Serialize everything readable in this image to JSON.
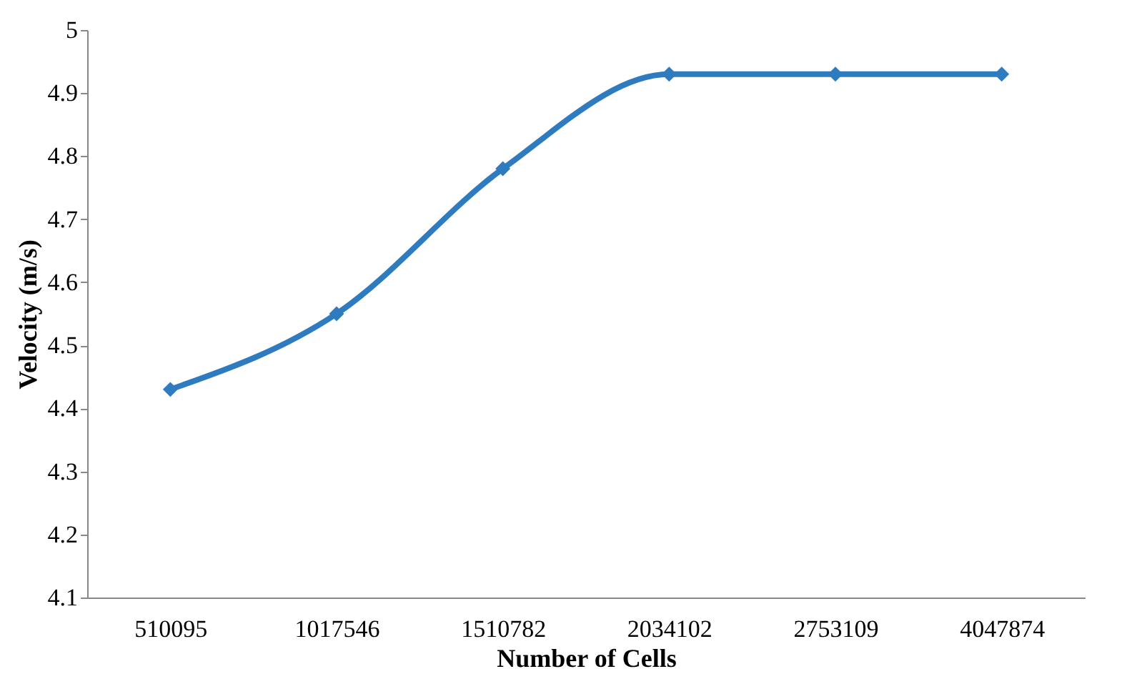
{
  "chart_data": {
    "type": "line",
    "xlabel": "Number of Cells",
    "ylabel": "Velocity (m/s)",
    "categories": [
      "510095",
      "1017546",
      "1510782",
      "2034102",
      "2753109",
      "4047874"
    ],
    "series": [
      {
        "color": "#2e7bc0",
        "values": [
          4.43,
          4.55,
          4.78,
          4.93,
          4.93,
          4.93
        ]
      }
    ],
    "ylim": [
      4.1,
      5
    ],
    "yticks": [
      4.1,
      4.2,
      4.3,
      4.4,
      4.5,
      4.6,
      4.7,
      4.8,
      4.9,
      5
    ],
    "grid": false,
    "marker": "diamond",
    "line_style": "solid"
  }
}
